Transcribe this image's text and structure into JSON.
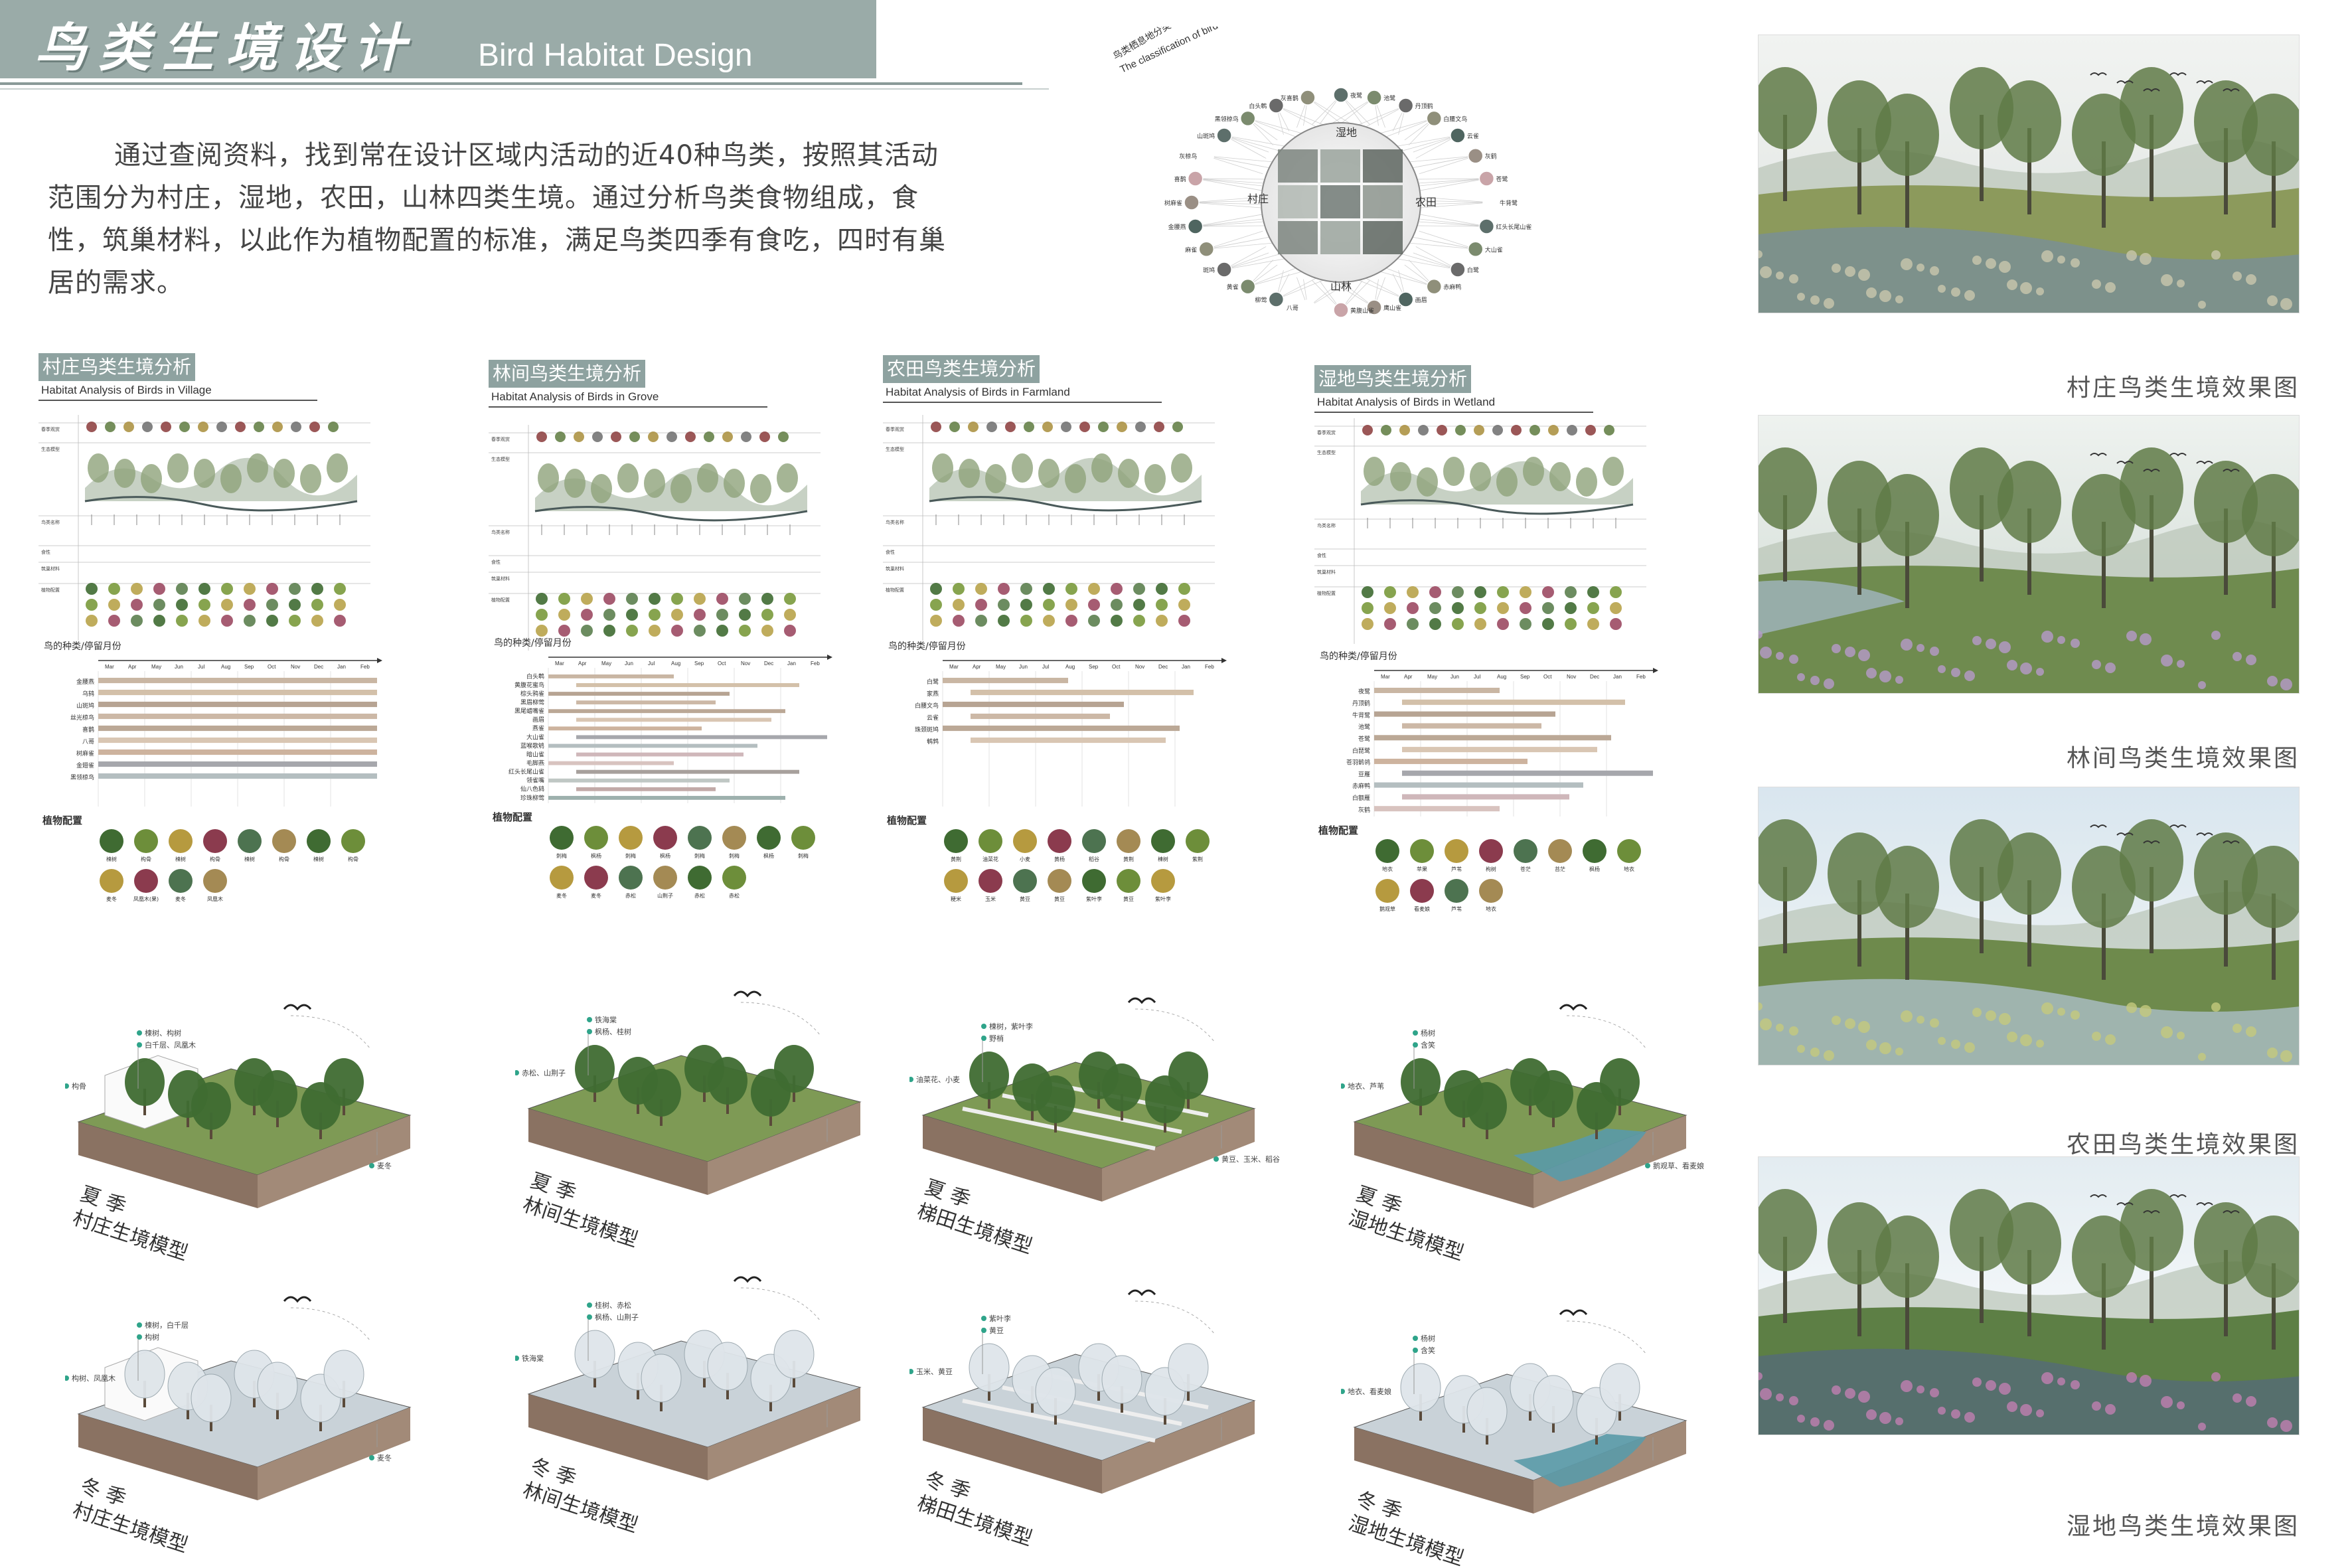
{
  "header": {
    "title_zh": "鸟类生境设计",
    "title_en": "Bird Habitat Design"
  },
  "intro": {
    "text": "通过查阅资料，找到常在设计区域内活动的近40种鸟类，按照其活动范围分为村庄，湿地，农田，山林四类生境。通过分析鸟类食物组成，食性，筑巢材料，以此作为植物配置的标准，满足鸟类四季有食吃，四时有巢居的需求。"
  },
  "radial": {
    "title_zh": "鸟类栖息地分类",
    "title_en": "The classification of bird habitat",
    "zones": [
      "村庄",
      "湿地",
      "农田",
      "山林"
    ],
    "birds": [
      "夜鹭",
      "池鹭",
      "丹顶鹤",
      "白腰文鸟",
      "云雀",
      "灰鹤",
      "苍鹭",
      "牛背鹭",
      "红头长尾山雀",
      "大山雀",
      "白鹭",
      "赤麻鸭",
      "画眉",
      "鹰山雀",
      "黄腹山雀",
      "八哥",
      "柳莺",
      "黄雀",
      "斑鸠",
      "麻雀",
      "金腰燕",
      "树麻雀",
      "喜鹊",
      "灰椋鸟",
      "山斑鸠",
      "黑领椋鸟",
      "白头鹎",
      "灰喜鹊"
    ]
  },
  "renders": [
    {
      "caption": "村庄鸟类生境效果图"
    },
    {
      "caption": "林间鸟类生境效果图"
    },
    {
      "caption": "农田鸟类生境效果图"
    },
    {
      "caption": "湿地鸟类生境效果图"
    }
  ],
  "columns": [
    {
      "title_zh": "村庄鸟类生境分析",
      "title_en": "Habitat Analysis of Birds in Village",
      "chart_title": "鸟的种类/停留月份",
      "birds": [
        "金腰燕",
        "乌鸫",
        "山斑鸠",
        "丝光椋鸟",
        "喜鹊",
        "八哥",
        "树麻雀",
        "金翅雀",
        "黑领椋鸟"
      ],
      "plant_title": "植物配置",
      "plants": [
        "楝树",
        "构骨",
        "楝树",
        "构骨",
        "楝树",
        "构骨",
        "楝树",
        "构骨",
        "麦冬",
        "凤凰木(果)",
        "麦冬",
        "凤凰木"
      ],
      "summer_label": [
        "夏 季",
        "村庄生境模型"
      ],
      "winter_label": [
        "冬 季",
        "村庄生境模型"
      ],
      "annot_summer": [
        "楝树、构树",
        "白千层、凤凰木",
        "构骨",
        "麦冬"
      ],
      "annot_winter": [
        "楝树，白千层",
        "构树",
        "构树、凤凰木",
        "麦冬"
      ]
    },
    {
      "title_zh": "林间鸟类生境分析",
      "title_en": "Habitat Analysis of Birds in Grove",
      "chart_title": "鸟的种类/停留月份",
      "birds": [
        "白头鹎",
        "黄腹花蜜鸟",
        "棕头鸦雀",
        "黑眉柳莺",
        "黑尾蜡嘴雀",
        "画眉",
        "燕雀",
        "大山雀",
        "蓝喉歌鸲",
        "暗山雀",
        "毛脚燕",
        "红头长尾山雀",
        "领雀嘴",
        "仙八色鸫",
        "珍珠柳莺"
      ],
      "plant_title": "植物配置",
      "plants": [
        "刺梅",
        "枫杨",
        "刺梅",
        "枫杨",
        "刺梅",
        "刺梅",
        "枫杨",
        "刺梅",
        "麦冬",
        "麦冬",
        "赤松",
        "山荆子",
        "赤松",
        "赤松"
      ],
      "summer_label": [
        "夏 季",
        "林间生境模型"
      ],
      "winter_label": [
        "冬 季",
        "林间生境模型"
      ],
      "annot_summer": [
        "铁海棠",
        "枫杨、桂树",
        "赤松、山荆子"
      ],
      "annot_winter": [
        "桂树、赤松",
        "枫杨、山荆子",
        "铁海棠"
      ]
    },
    {
      "title_zh": "农田鸟类生境分析",
      "title_en": "Habitat Analysis of Birds in Farmland",
      "chart_title": "鸟的种类/停留月份",
      "birds": [
        "白鹭",
        "家燕",
        "白腰文鸟",
        "云雀",
        "珠颈斑鸠",
        "鹌鹑"
      ],
      "plant_title": "植物配置",
      "plants": [
        "黄荆",
        "油菜花",
        "小麦",
        "黄杨",
        "稻谷",
        "黄荆",
        "棟树",
        "紫荆",
        "粳米",
        "玉米",
        "黄豆",
        "黄豆",
        "紫叶李",
        "黄豆",
        "紫叶李"
      ],
      "summer_label": [
        "夏 季",
        "梯田生境模型"
      ],
      "winter_label": [
        "冬 季",
        "梯田生境模型"
      ],
      "annot_summer": [
        "楝树，紫叶李",
        "野梢",
        "油菜花、小麦",
        "黄豆、玉米、稻谷"
      ],
      "annot_winter": [
        "紫叶李",
        "黄豆",
        "玉米、黄豆"
      ]
    },
    {
      "title_zh": "湿地鸟类生境分析",
      "title_en": "Habitat Analysis of Birds in Wetland",
      "chart_title": "鸟的种类/停留月份",
      "birds": [
        "夜鹭",
        "丹顶鹤",
        "牛背鹭",
        "池鹭",
        "苍鹭",
        "白琵鹭",
        "苍羽鹡鸰",
        "豆雁",
        "赤麻鸭",
        "白额雁",
        "灰鹤"
      ],
      "plant_title": "植物配置",
      "plants": [
        "地衣",
        "苹果",
        "芦苇",
        "枸树",
        "苍茫",
        "苔茫",
        "枫杨",
        "地衣",
        "鹅观草",
        "看麦娘",
        "芦苇",
        "地衣"
      ],
      "summer_label": [
        "夏 季",
        "湿地生境模型"
      ],
      "winter_label": [
        "冬 季",
        "湿地生境模型"
      ],
      "annot_summer": [
        "杨树",
        "含笑",
        "地衣、芦苇",
        "鹅观草、看麦娘"
      ],
      "annot_winter": [
        "杨树",
        "含笑",
        "地衣、看麦娘"
      ]
    }
  ],
  "months": [
    "Mar",
    "Apr",
    "May",
    "Jun",
    "Jul",
    "Aug",
    "Sep",
    "Oct",
    "Nov",
    "Dec",
    "Jan",
    "Feb"
  ],
  "matrix_rows": [
    "春季观赏",
    "生态模型",
    "鸟类名称",
    "食性",
    "筑巢材料",
    "植物配置"
  ],
  "colors": {
    "header": "#9aaba8",
    "tag": "#8ea2a0",
    "bars": [
      "#c9b6a3",
      "#d3c0a9",
      "#b7a493",
      "#ccb8a6",
      "#bba896",
      "#d9c6b3",
      "#cdb39e",
      "#a6a7ac",
      "#b4bec0",
      "#cfb7ba",
      "#d8c3bf",
      "#a7a09c",
      "#bfc7c4",
      "#c2aaa8",
      "#9db0ad"
    ]
  }
}
